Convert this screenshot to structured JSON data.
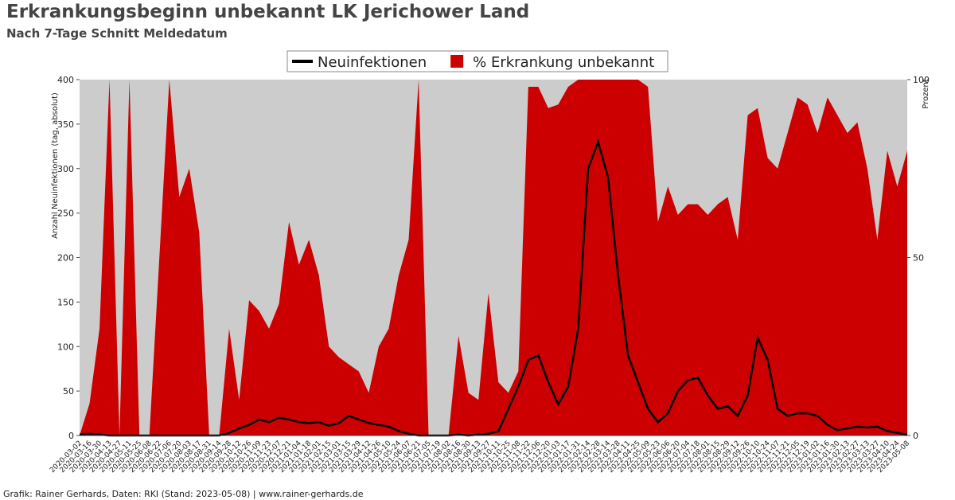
{
  "chart_data": {
    "type": "line-area",
    "title": "Erkrankungsbeginn unbekannt LK Jerichower Land",
    "subtitle": "Nach 7-Tage Schnitt Meldedatum",
    "y_label": "Anzahl Neuinfektionen (tag, absolut)",
    "y2_label": "Prozent",
    "footer": "Grafik: Rainer Gerhards, Daten: RKI (Stand: 2023-05-08) | www.rainer-gerhards.de",
    "x": [
      "2020-03-02",
      "2020-03-16",
      "2020-03-30",
      "2020-04-13",
      "2020-04-27",
      "2020-05-11",
      "2020-05-25",
      "2020-06-08",
      "2020-06-22",
      "2020-07-06",
      "2020-07-20",
      "2020-08-03",
      "2020-08-17",
      "2020-08-31",
      "2020-09-14",
      "2020-09-28",
      "2020-10-12",
      "2020-10-26",
      "2020-11-09",
      "2020-11-23",
      "2020-12-07",
      "2020-12-21",
      "2021-01-04",
      "2021-01-18",
      "2021-02-01",
      "2021-02-15",
      "2021-03-01",
      "2021-03-15",
      "2021-03-29",
      "2021-04-12",
      "2021-04-26",
      "2021-05-10",
      "2021-05-24",
      "2021-06-07",
      "2021-06-21",
      "2021-07-05",
      "2021-07-19",
      "2021-08-02",
      "2021-08-16",
      "2021-08-30",
      "2021-09-13",
      "2021-09-27",
      "2021-10-11",
      "2021-10-25",
      "2021-11-08",
      "2021-11-22",
      "2021-12-06",
      "2021-12-20",
      "2022-01-03",
      "2022-01-17",
      "2022-01-31",
      "2022-02-14",
      "2022-02-28",
      "2022-03-14",
      "2022-03-28",
      "2022-04-11",
      "2022-04-25",
      "2022-05-09",
      "2022-05-23",
      "2022-06-06",
      "2022-06-20",
      "2022-07-04",
      "2022-07-18",
      "2022-08-01",
      "2022-08-15",
      "2022-08-29",
      "2022-09-12",
      "2022-09-26",
      "2022-10-10",
      "2022-10-24",
      "2022-11-07",
      "2022-11-21",
      "2022-12-05",
      "2022-12-19",
      "2023-01-02",
      "2023-01-16",
      "2023-01-30",
      "2023-02-13",
      "2023-02-27",
      "2023-03-13",
      "2023-03-27",
      "2023-04-10",
      "2023-04-24",
      "2023-05-08"
    ],
    "series": [
      {
        "name": "Neuinfektionen",
        "color": "#000000",
        "kind": "line",
        "values": [
          1,
          2,
          1,
          0,
          0,
          0,
          0,
          0,
          0,
          0,
          0,
          0,
          0,
          0,
          0,
          3,
          8,
          12,
          18,
          15,
          20,
          18,
          15,
          14,
          15,
          11,
          14,
          22,
          18,
          14,
          12,
          10,
          5,
          2,
          0,
          0,
          0,
          0,
          1,
          0,
          1,
          2,
          5,
          30,
          55,
          85,
          90,
          60,
          35,
          55,
          120,
          300,
          330,
          290,
          180,
          90,
          60,
          30,
          15,
          25,
          50,
          62,
          65,
          45,
          30,
          33,
          22,
          45,
          110,
          85,
          30,
          22,
          25,
          25,
          22,
          12,
          6,
          8,
          10,
          9,
          10,
          5,
          3,
          1
        ]
      },
      {
        "name": "% Erkrankung unbekannt",
        "color": "#cc0000",
        "kind": "area",
        "axis": "y2",
        "values": [
          0,
          9,
          30,
          100,
          0,
          100,
          0,
          0,
          50,
          100,
          67,
          75,
          57,
          0,
          0,
          30,
          10,
          38,
          35,
          30,
          37,
          60,
          48,
          55,
          45,
          25,
          22,
          20,
          18,
          12,
          25,
          30,
          45,
          55,
          100,
          0,
          0,
          0,
          28,
          12,
          10,
          40,
          15,
          12,
          18,
          98,
          98,
          92,
          93,
          98,
          100,
          100,
          100,
          100,
          100,
          100,
          100,
          98,
          60,
          70,
          62,
          65,
          65,
          62,
          65,
          67,
          55,
          90,
          92,
          78,
          75,
          85,
          95,
          93,
          85,
          95,
          90,
          85,
          88,
          75,
          55,
          80,
          70,
          80
        ]
      }
    ],
    "ylim": [
      0,
      400
    ],
    "yticks": [
      0,
      50,
      100,
      150,
      200,
      250,
      300,
      350,
      400
    ],
    "y2lim": [
      0,
      100
    ],
    "y2ticks": [
      0,
      50,
      100
    ],
    "legend": "top"
  }
}
